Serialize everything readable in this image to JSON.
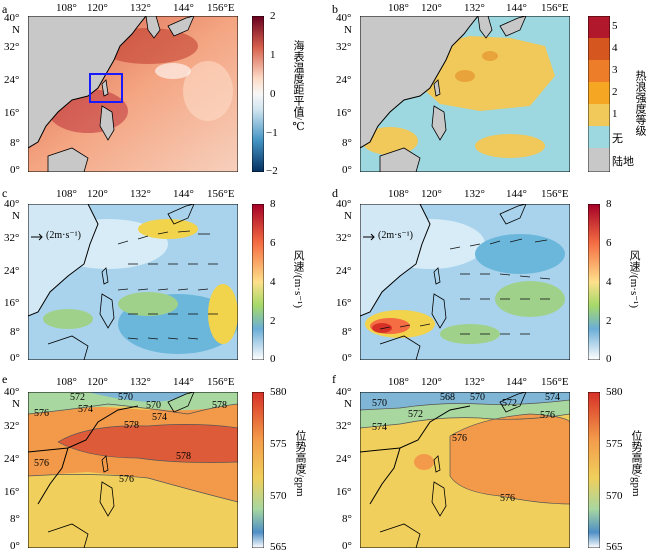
{
  "panels": [
    {
      "id": "a",
      "label": "a",
      "xticks": [
        "108°",
        "120°",
        "132°",
        "144°",
        "156°E"
      ],
      "yticks": [
        "40°",
        "N",
        "32°",
        "24°",
        "16°",
        "8°",
        "0°"
      ],
      "cbar": {
        "title": "海表温度距平值/℃",
        "ticks": [
          "2",
          "1",
          "0",
          "−1",
          "−2"
        ]
      }
    },
    {
      "id": "b",
      "label": "b",
      "xticks": [
        "108°",
        "120°",
        "132°",
        "144°",
        "156°E"
      ],
      "yticks": [
        "40°",
        "N",
        "32°",
        "24°",
        "16°",
        "8°",
        "0°"
      ],
      "cbar": {
        "title": "热浪强度等级",
        "levels": [
          "5",
          "4",
          "3",
          "2",
          "1",
          "无",
          "陆地"
        ]
      }
    },
    {
      "id": "c",
      "label": "c",
      "xticks": [
        "108°",
        "120°",
        "132°",
        "144°",
        "156°E"
      ],
      "yticks": [
        "40°",
        "N",
        "32°",
        "24°",
        "16°",
        "8°",
        "0°"
      ],
      "ref": "(2m·s⁻¹)",
      "cbar": {
        "title": "风速/(m·s⁻¹)",
        "ticks": [
          "8",
          "6",
          "4",
          "2",
          "0"
        ]
      }
    },
    {
      "id": "d",
      "label": "d",
      "xticks": [
        "108°",
        "120°",
        "132°",
        "144°",
        "156°E"
      ],
      "yticks": [
        "40°",
        "N",
        "32°",
        "24°",
        "16°",
        "8°",
        "0°"
      ],
      "ref": "(2m·s⁻¹)",
      "cbar": {
        "title": "风速/(m·s⁻¹)",
        "ticks": [
          "8",
          "6",
          "4",
          "2",
          "0"
        ]
      }
    },
    {
      "id": "e",
      "label": "e",
      "xticks": [
        "108°",
        "120°",
        "132°",
        "144°",
        "156°E"
      ],
      "yticks": [
        "40°",
        "N",
        "32°",
        "24°",
        "16°",
        "8°",
        "0°"
      ],
      "contours": [
        "572",
        "570",
        "576",
        "574",
        "578",
        "578",
        "576",
        "576",
        "570",
        "578",
        "574"
      ],
      "cbar": {
        "title": "位势高度/gpm",
        "ticks": [
          "580",
          "575",
          "570",
          "565"
        ]
      }
    },
    {
      "id": "f",
      "label": "f",
      "xticks": [
        "108°",
        "120°",
        "132°",
        "144°",
        "156°E"
      ],
      "yticks": [
        "40°",
        "N",
        "32°",
        "24°",
        "16°",
        "8°",
        "0°"
      ],
      "contours": [
        "570",
        "572",
        "568",
        "570",
        "572",
        "574",
        "576",
        "576",
        "574",
        "576"
      ],
      "cbar": {
        "title": "位势高度/gpm",
        "ticks": [
          "580",
          "575",
          "570",
          "565"
        ]
      }
    }
  ]
}
